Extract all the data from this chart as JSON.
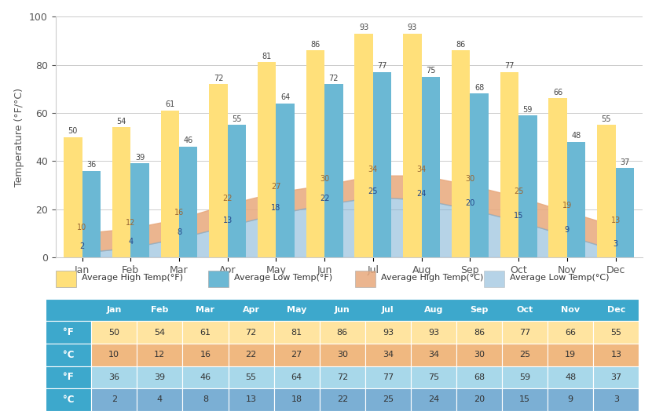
{
  "months": [
    "Jan",
    "Feb",
    "Mar",
    "Apr",
    "May",
    "Jun",
    "Jul",
    "Aug",
    "Sep",
    "Oct",
    "Nov",
    "Dec"
  ],
  "avg_high_F": [
    50,
    54,
    61,
    72,
    81,
    86,
    93,
    93,
    86,
    77,
    66,
    55
  ],
  "avg_low_F": [
    36,
    39,
    46,
    55,
    64,
    72,
    77,
    75,
    68,
    59,
    48,
    37
  ],
  "avg_high_C": [
    10,
    12,
    16,
    22,
    27,
    30,
    34,
    34,
    30,
    25,
    19,
    13
  ],
  "avg_low_C": [
    2,
    4,
    8,
    13,
    18,
    22,
    25,
    24,
    20,
    15,
    9,
    3
  ],
  "bar_high_F_color": "#FFE07A",
  "bar_low_F_color": "#6BB8D4",
  "area_high_C_color": "#E8A87C",
  "area_low_C_color": "#7BAFD4",
  "ylabel": "Temperature (°F/°C)",
  "ylim": [
    0,
    100
  ],
  "yticks": [
    0,
    20,
    40,
    60,
    80,
    100
  ],
  "legend_labels": [
    "Average High Temp(°F)",
    "Average Low Temp(°F)",
    "Average High Temp(°C)",
    "Average Low Temp(°C)"
  ],
  "table_header_bg": "#3DA8CC",
  "table_row_bg_1": "#FFE4A0",
  "table_row_bg_2": "#F0B880",
  "table_row_bg_3": "#A8D8EA",
  "table_row_bg_4": "#7BAFD4",
  "row_labels": [
    "°F",
    "°C",
    "°F",
    "°C"
  ],
  "background_color": "#FFFFFF",
  "grid_color": "#CCCCCC",
  "annotation_color": "#444444",
  "label_high_C_color": "#996633",
  "label_low_C_color": "#224488"
}
